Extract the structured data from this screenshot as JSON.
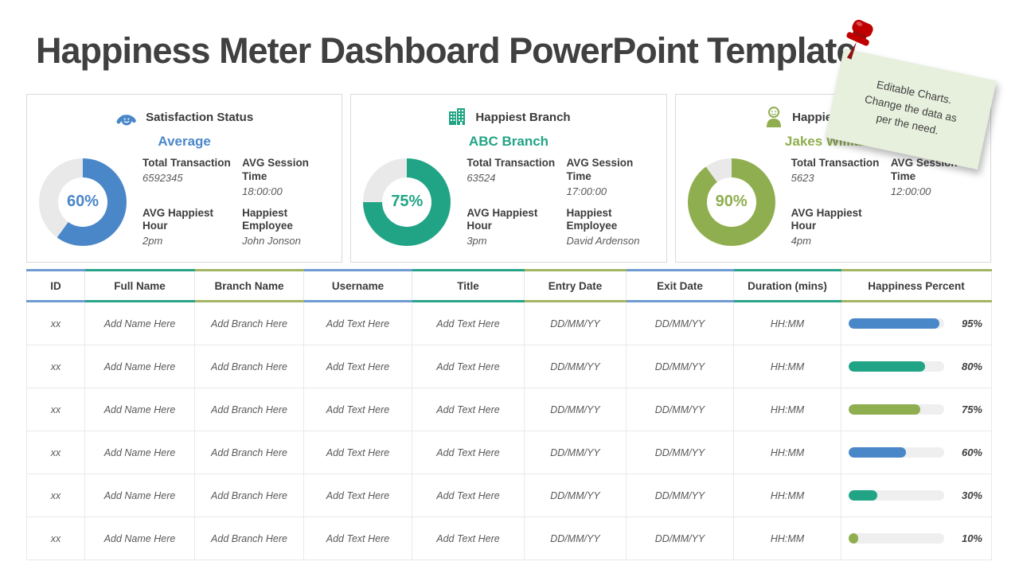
{
  "page": {
    "title": "Happiness Meter Dashboard PowerPoint Template",
    "background": "#ffffff"
  },
  "sticky_note": {
    "line1": "Editable Charts.",
    "line2": "Change the data as",
    "line3": "per the need.",
    "color": "#e7efdd",
    "pin_icon": "red-pushpin-icon",
    "pin_color": "#c00000"
  },
  "colors": {
    "blue": "#4a87c9",
    "teal": "#21a485",
    "olive": "#8fae4f",
    "donut_rest": "#e9e9e9",
    "bar_track": "#efefef",
    "title_text": "#404040"
  },
  "cards": [
    {
      "icon": "gauge-smiley-icon",
      "title": "Satisfaction Status",
      "subtitle": "Average",
      "accent": "#4a87c9",
      "percent": 60,
      "percent_label": "60%",
      "stats": [
        {
          "label": "Total Transaction",
          "value": "6592345"
        },
        {
          "label": "AVG Session Time",
          "value": "18:00:00"
        },
        {
          "label": "AVG Happiest Hour",
          "value": "2pm"
        },
        {
          "label": "Happiest Employee",
          "value": "John Jonson"
        }
      ]
    },
    {
      "icon": "buildings-icon",
      "title": "Happiest Branch",
      "subtitle": "ABC Branch",
      "accent": "#21a485",
      "percent": 75,
      "percent_label": "75%",
      "stats": [
        {
          "label": "Total Transaction",
          "value": "63524"
        },
        {
          "label": "AVG Session Time",
          "value": "17:00:00"
        },
        {
          "label": "AVG Happiest Hour",
          "value": "3pm"
        },
        {
          "label": "Happiest Employee",
          "value": "David Ardenson"
        }
      ]
    },
    {
      "icon": "person-icon",
      "title": "Happiest Employee",
      "subtitle": "Jakes Williams",
      "accent": "#8fae4f",
      "percent": 90,
      "percent_label": "90%",
      "stats": [
        {
          "label": "Total Transaction",
          "value": "5623"
        },
        {
          "label": "AVG Session Time",
          "value": "12:00:00"
        },
        {
          "label": "AVG Happiest Hour",
          "value": "4pm"
        },
        {
          "label": "",
          "value": ""
        }
      ]
    }
  ],
  "table": {
    "columns": [
      {
        "label": "ID",
        "accent": "#6f9bd3"
      },
      {
        "label": "Full Name",
        "accent": "#2aa489"
      },
      {
        "label": "Branch Name",
        "accent": "#a3b564"
      },
      {
        "label": "Username",
        "accent": "#6f9bd3"
      },
      {
        "label": "Title",
        "accent": "#2aa489"
      },
      {
        "label": "Entry Date",
        "accent": "#a3b564"
      },
      {
        "label": "Exit Date",
        "accent": "#6f9bd3"
      },
      {
        "label": "Duration (mins)",
        "accent": "#2aa489"
      },
      {
        "label": "Happiness Percent",
        "accent": "#a3b564"
      }
    ],
    "rows": [
      {
        "cells": [
          "xx",
          "Add Name Here",
          "Add Branch Here",
          "Add Text Here",
          "Add Text Here",
          "DD/MM/YY",
          "DD/MM/YY",
          "HH:MM"
        ],
        "percent": 95,
        "percent_label": "95%",
        "color": "#4a87c9"
      },
      {
        "cells": [
          "xx",
          "Add Name Here",
          "Add Branch Here",
          "Add Text Here",
          "Add Text Here",
          "DD/MM/YY",
          "DD/MM/YY",
          "HH:MM"
        ],
        "percent": 80,
        "percent_label": "80%",
        "color": "#21a485"
      },
      {
        "cells": [
          "xx",
          "Add Name Here",
          "Add Branch Here",
          "Add Text Here",
          "Add Text Here",
          "DD/MM/YY",
          "DD/MM/YY",
          "HH:MM"
        ],
        "percent": 75,
        "percent_label": "75%",
        "color": "#8fae4f"
      },
      {
        "cells": [
          "xx",
          "Add Name Here",
          "Add Branch Here",
          "Add Text Here",
          "Add Text Here",
          "DD/MM/YY",
          "DD/MM/YY",
          "HH:MM"
        ],
        "percent": 60,
        "percent_label": "60%",
        "color": "#4a87c9"
      },
      {
        "cells": [
          "xx",
          "Add Name Here",
          "Add Branch Here",
          "Add Text Here",
          "Add Text Here",
          "DD/MM/YY",
          "DD/MM/YY",
          "HH:MM"
        ],
        "percent": 30,
        "percent_label": "30%",
        "color": "#21a485"
      },
      {
        "cells": [
          "xx",
          "Add Name Here",
          "Add Branch Here",
          "Add Text Here",
          "Add Text Here",
          "DD/MM/YY",
          "DD/MM/YY",
          "HH:MM"
        ],
        "percent": 10,
        "percent_label": "10%",
        "color": "#8fae4f"
      }
    ]
  },
  "chart_data": [
    {
      "type": "pie",
      "subtype": "donut",
      "title": "Satisfaction Status (Average)",
      "series": [
        {
          "name": "satisfaction",
          "value": 60
        },
        {
          "name": "remainder",
          "value": 40
        }
      ],
      "center_label": "60%",
      "color": "#4a87c9"
    },
    {
      "type": "pie",
      "subtype": "donut",
      "title": "Happiest Branch (ABC Branch)",
      "series": [
        {
          "name": "happiness",
          "value": 75
        },
        {
          "name": "remainder",
          "value": 25
        }
      ],
      "center_label": "75%",
      "color": "#21a485"
    },
    {
      "type": "pie",
      "subtype": "donut",
      "title": "Happiest Employee (Jakes Williams)",
      "series": [
        {
          "name": "happiness",
          "value": 90
        },
        {
          "name": "remainder",
          "value": 10
        }
      ],
      "center_label": "90%",
      "color": "#8fae4f"
    },
    {
      "type": "bar",
      "orientation": "horizontal",
      "title": "Happiness Percent",
      "categories": [
        "row 1",
        "row 2",
        "row 3",
        "row 4",
        "row 5",
        "row 6"
      ],
      "values": [
        95,
        80,
        75,
        60,
        30,
        10
      ],
      "xlim": [
        0,
        100
      ],
      "colors": [
        "#4a87c9",
        "#21a485",
        "#8fae4f",
        "#4a87c9",
        "#21a485",
        "#8fae4f"
      ]
    }
  ]
}
